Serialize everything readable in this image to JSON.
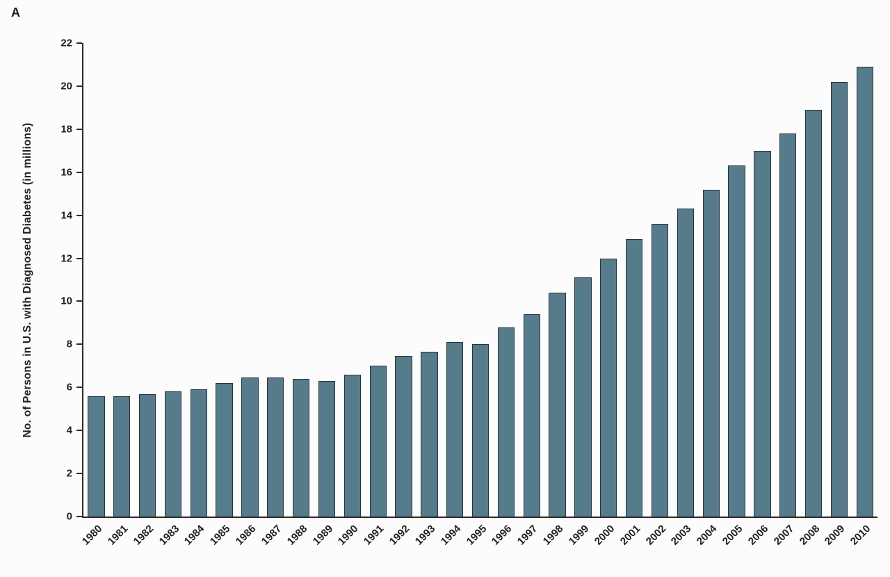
{
  "panel_label": "A",
  "chart_data": {
    "type": "bar",
    "title": "",
    "xlabel": "",
    "ylabel": "No. of Persons in U.S. with Diagnosed Diabetes (in millions)",
    "ylim": [
      0,
      22
    ],
    "yticks": [
      0,
      2,
      4,
      6,
      8,
      10,
      12,
      14,
      16,
      18,
      20,
      22
    ],
    "grid": false,
    "legend": null,
    "bar_color": "#567b8b",
    "bar_border_color": "#26343c",
    "axis_color": "#2b2b2b",
    "categories": [
      "1980",
      "1981",
      "1982",
      "1983",
      "1984",
      "1985",
      "1986",
      "1987",
      "1988",
      "1989",
      "1990",
      "1991",
      "1992",
      "1993",
      "1994",
      "1995",
      "1996",
      "1997",
      "1998",
      "1999",
      "2000",
      "2001",
      "2002",
      "2003",
      "2004",
      "2005",
      "2006",
      "2007",
      "2008",
      "2009",
      "2010"
    ],
    "values": [
      5.6,
      5.6,
      5.7,
      5.8,
      5.9,
      6.2,
      6.45,
      6.45,
      6.4,
      6.3,
      6.6,
      7.0,
      7.45,
      7.65,
      8.1,
      8.0,
      8.8,
      9.4,
      10.4,
      11.1,
      12.0,
      12.9,
      13.6,
      14.3,
      15.2,
      16.3,
      17.0,
      17.8,
      18.9,
      20.2,
      20.9
    ]
  }
}
